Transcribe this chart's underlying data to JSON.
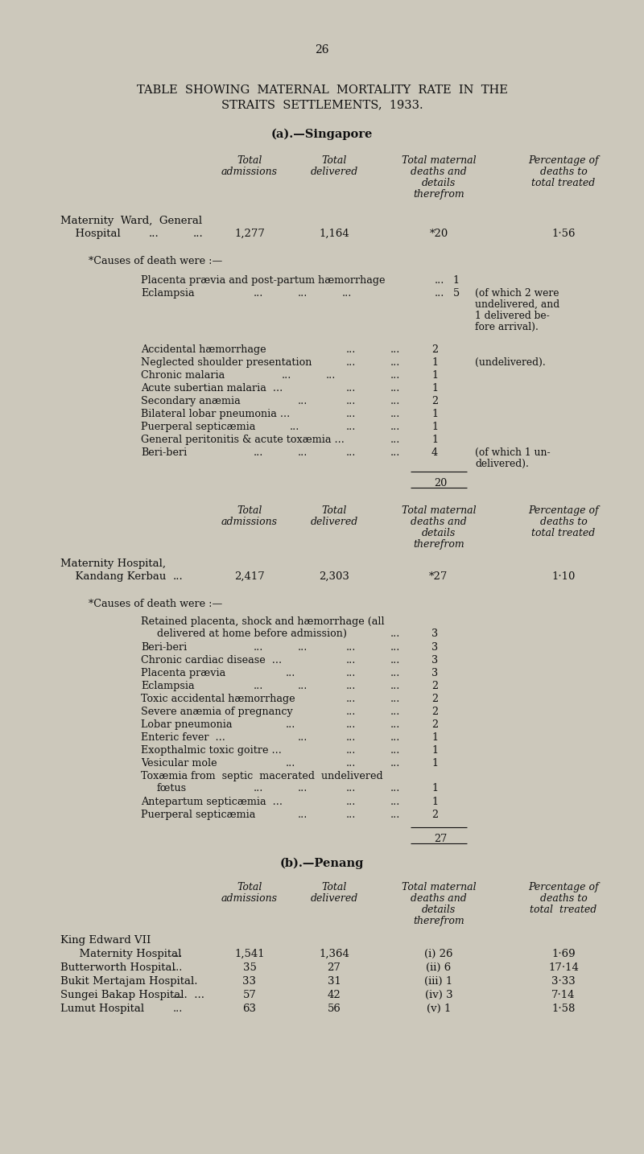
{
  "page_number": "26",
  "main_title_line1": "TABLE  SHOWING  MATERNAL  MORTALITY  RATE  IN  THE",
  "main_title_line2": "STRAITS  SETTLEMENTS,  1933.",
  "section_a_title": "(a).—Singapore",
  "sg_hospital_name_line1": "Maternity  Ward,  General",
  "sg_hospital_name_line2": "  Hospital",
  "sg_dots1": "...",
  "sg_dots2": "...",
  "sg_admissions": "1,277",
  "sg_delivered": "1,164",
  "sg_deaths": "*20",
  "sg_percentage": "1·56",
  "causes_header_sg": "*Causes of death were :—",
  "sg_total_line": "20",
  "kk_hospital_name_line1": "Maternity Hospital,",
  "kk_hospital_name_line2": "  Kandang Kerbau",
  "kk_dots": "...",
  "kk_admissions": "2,417",
  "kk_delivered": "2,303",
  "kk_deaths": "*27",
  "kk_percentage": "1·10",
  "causes_header_kk": "*Causes of death were :—",
  "kk_total_line": "27",
  "section_b_title": "(b).—Penang",
  "bg_color": "#ccc8bb",
  "text_color": "#111111"
}
